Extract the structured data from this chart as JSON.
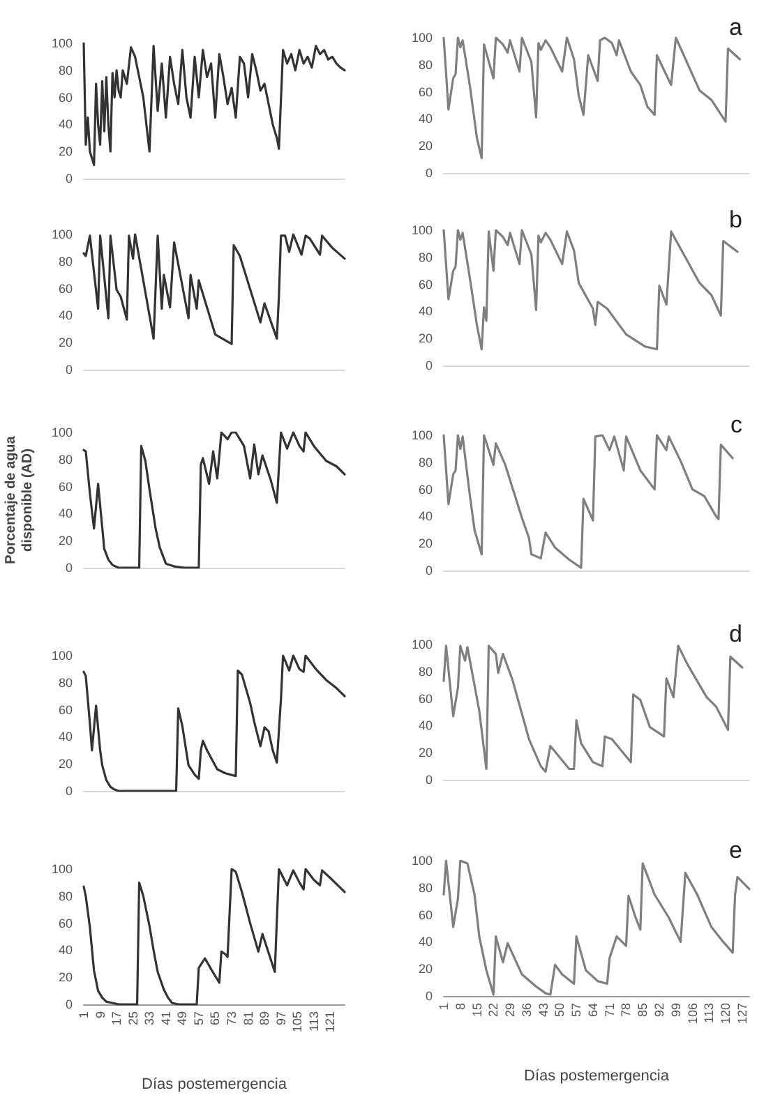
{
  "chart_data": [
    {
      "type": "line",
      "marker": "none",
      "xlim": [
        1,
        128
      ],
      "ylim": [
        0,
        100
      ],
      "yticks": [
        0,
        20,
        40,
        60,
        80,
        100
      ],
      "tick_labels": "y",
      "x": [
        1,
        2,
        3,
        4,
        5,
        6,
        7,
        8,
        9,
        10,
        11,
        12,
        13,
        14,
        15,
        16,
        17,
        18,
        19,
        20,
        22,
        24,
        26,
        28,
        30,
        33,
        35,
        37,
        39,
        41,
        43,
        45,
        47,
        49,
        51,
        53,
        55,
        57,
        59,
        61,
        63,
        65,
        67,
        69,
        71,
        73,
        75,
        77,
        79,
        81,
        83,
        85,
        87,
        89,
        91,
        93,
        95,
        96,
        98,
        100,
        102,
        104,
        106,
        108,
        110,
        112,
        114,
        116,
        118,
        120,
        122,
        124,
        126,
        128
      ],
      "series": [
        {
          "color": "#333333",
          "values": [
            100,
            25,
            45,
            20,
            15,
            10,
            70,
            40,
            25,
            72,
            35,
            75,
            40,
            20,
            78,
            60,
            80,
            65,
            60,
            80,
            70,
            97,
            90,
            75,
            60,
            20,
            98,
            50,
            85,
            45,
            90,
            70,
            55,
            95,
            60,
            45,
            90,
            60,
            95,
            75,
            85,
            45,
            92,
            75,
            55,
            67,
            45,
            90,
            85,
            60,
            92,
            80,
            65,
            70,
            55,
            40,
            30,
            22,
            95,
            85,
            92,
            80,
            95,
            85,
            90,
            82,
            98,
            92,
            95,
            88,
            90,
            85,
            82,
            80
          ]
        }
      ]
    },
    {
      "type": "line",
      "marker": "none",
      "xlim": [
        1,
        130
      ],
      "ylim": [
        0,
        100
      ],
      "yticks": [
        0,
        20,
        40,
        60,
        80,
        100
      ],
      "tick_labels": "y",
      "title": "a",
      "x": [
        1,
        3,
        5,
        6,
        7,
        8,
        9,
        12,
        15,
        17,
        18,
        22,
        23,
        26,
        28,
        29,
        33,
        34,
        38,
        40,
        41,
        42,
        44,
        46,
        51,
        53,
        56,
        58,
        60,
        62,
        66,
        67,
        69,
        72,
        74,
        75,
        80,
        84,
        87,
        90,
        91,
        97,
        99,
        109,
        114,
        120,
        121,
        126
      ],
      "series": [
        {
          "color": "#7f7f7f",
          "values": [
            100,
            47,
            70,
            73,
            100,
            93,
            98,
            65,
            26,
            11,
            95,
            70,
            100,
            95,
            89,
            98,
            75,
            100,
            82,
            41,
            96,
            91,
            98,
            93,
            75,
            100,
            84,
            57,
            43,
            87,
            68,
            98,
            100,
            96,
            87,
            98,
            75,
            65,
            49,
            43,
            87,
            65,
            100,
            61,
            54,
            38,
            92,
            84
          ]
        }
      ]
    },
    {
      "type": "line",
      "marker": "none",
      "xlim": [
        1,
        128
      ],
      "ylim": [
        0,
        100
      ],
      "yticks": [
        0,
        20,
        40,
        60,
        80,
        100
      ],
      "tick_labels": "y",
      "x": [
        1,
        2,
        4,
        8,
        9,
        13,
        14,
        17,
        19,
        22,
        23,
        25,
        26,
        35,
        37,
        39,
        40,
        43,
        45,
        52,
        53,
        56,
        57,
        65,
        73,
        74,
        77,
        87,
        89,
        95,
        96,
        97,
        99,
        101,
        103,
        107,
        109,
        111,
        116,
        117,
        122,
        128
      ],
      "series": [
        {
          "color": "#333333",
          "values": [
            86,
            84,
            99,
            45,
            99,
            38,
            99,
            59,
            54,
            37,
            99,
            82,
            100,
            23,
            99,
            45,
            70,
            46,
            94,
            38,
            70,
            45,
            66,
            26,
            19,
            92,
            84,
            35,
            49,
            23,
            54,
            99,
            99,
            87,
            100,
            85,
            99,
            97,
            85,
            99,
            90,
            82
          ]
        }
      ]
    },
    {
      "type": "line",
      "marker": "none",
      "xlim": [
        1,
        130
      ],
      "ylim": [
        0,
        100
      ],
      "yticks": [
        0,
        20,
        40,
        60,
        80,
        100
      ],
      "tick_labels": "y",
      "title": "b",
      "x": [
        1,
        3,
        5,
        6,
        7,
        8,
        9,
        12,
        15,
        17,
        18,
        19,
        20,
        22,
        23,
        26,
        28,
        29,
        33,
        34,
        38,
        40,
        41,
        42,
        44,
        46,
        51,
        53,
        56,
        58,
        64,
        65,
        66,
        70,
        78,
        86,
        91,
        92,
        95,
        97,
        109,
        114,
        118,
        119,
        125
      ],
      "series": [
        {
          "color": "#7f7f7f",
          "values": [
            100,
            49,
            70,
            73,
            100,
            93,
            98,
            65,
            30,
            12,
            43,
            33,
            99,
            70,
            100,
            95,
            89,
            98,
            75,
            100,
            82,
            41,
            96,
            91,
            98,
            93,
            75,
            99,
            85,
            61,
            42,
            30,
            47,
            42,
            23,
            14,
            12,
            59,
            45,
            99,
            61,
            52,
            37,
            92,
            84
          ]
        }
      ]
    },
    {
      "type": "line",
      "marker": "none",
      "xlim": [
        1,
        128
      ],
      "ylim": [
        0,
        100
      ],
      "yticks": [
        0,
        20,
        40,
        60,
        80,
        100
      ],
      "tick_labels": "y",
      "ylabel": "Porcentaje de agua disponible (AD)",
      "x": [
        1,
        2,
        4,
        6,
        8,
        10,
        11,
        13,
        15,
        18,
        28,
        29,
        31,
        33,
        36,
        38,
        41,
        45,
        50,
        57,
        58,
        59,
        62,
        64,
        66,
        68,
        71,
        73,
        75,
        79,
        82,
        84,
        86,
        88,
        92,
        95,
        97,
        100,
        103,
        106,
        108,
        109,
        113,
        119,
        124,
        128
      ],
      "series": [
        {
          "color": "#333333",
          "values": [
            87,
            86,
            55,
            29,
            62,
            30,
            14,
            6,
            2,
            0,
            0,
            90,
            79,
            58,
            29,
            15,
            3,
            1,
            0,
            0,
            76,
            81,
            62,
            86,
            66,
            100,
            95,
            100,
            100,
            90,
            66,
            91,
            69,
            83,
            65,
            48,
            100,
            88,
            100,
            90,
            86,
            100,
            90,
            79,
            75,
            69
          ]
        }
      ]
    },
    {
      "type": "line",
      "marker": "none",
      "xlim": [
        1,
        130
      ],
      "ylim": [
        0,
        100
      ],
      "yticks": [
        0,
        20,
        40,
        60,
        80,
        100
      ],
      "tick_labels": "y",
      "title": "c",
      "x": [
        1,
        3,
        5,
        6,
        7,
        8,
        9,
        12,
        14,
        17,
        18,
        22,
        23,
        27,
        34,
        37,
        38,
        42,
        44,
        48,
        54,
        59,
        60,
        64,
        65,
        68,
        71,
        73,
        77,
        78,
        84,
        90,
        91,
        95,
        96,
        101,
        106,
        111,
        116,
        117,
        118,
        123
      ],
      "series": [
        {
          "color": "#7f7f7f",
          "values": [
            100,
            49,
            71,
            74,
            100,
            90,
            99,
            56,
            30,
            12,
            100,
            78,
            94,
            78,
            39,
            24,
            12,
            9,
            28,
            17,
            8,
            2,
            53,
            37,
            99,
            100,
            89,
            99,
            74,
            99,
            74,
            60,
            100,
            89,
            99,
            81,
            60,
            55,
            40,
            38,
            93,
            83
          ]
        }
      ]
    },
    {
      "type": "line",
      "marker": "none",
      "xlim": [
        1,
        128
      ],
      "ylim": [
        0,
        100
      ],
      "yticks": [
        0,
        20,
        40,
        60,
        80,
        100
      ],
      "tick_labels": "y",
      "x": [
        1,
        2,
        4,
        5,
        7,
        9,
        10,
        12,
        14,
        16,
        18,
        46,
        47,
        49,
        52,
        55,
        57,
        58,
        59,
        61,
        66,
        70,
        75,
        76,
        78,
        82,
        84,
        87,
        89,
        91,
        93,
        95,
        97,
        98,
        101,
        103,
        106,
        108,
        109,
        114,
        119,
        124,
        128
      ],
      "series": [
        {
          "color": "#333333",
          "values": [
            88,
            85,
            50,
            30,
            63,
            30,
            19,
            8,
            3,
            1,
            0,
            0,
            61,
            48,
            19,
            12,
            9,
            30,
            37,
            30,
            16,
            13,
            11,
            89,
            86,
            65,
            51,
            33,
            47,
            44,
            30,
            21,
            68,
            100,
            89,
            100,
            90,
            88,
            100,
            90,
            82,
            76,
            70
          ]
        }
      ]
    },
    {
      "type": "line",
      "marker": "none",
      "xlim": [
        1,
        130
      ],
      "ylim": [
        0,
        100
      ],
      "yticks": [
        0,
        20,
        40,
        60,
        80,
        100
      ],
      "tick_labels": "y",
      "title": "d",
      "x": [
        1,
        2,
        5,
        7,
        8,
        10,
        11,
        16,
        19,
        20,
        23,
        24,
        26,
        30,
        37,
        42,
        44,
        46,
        54,
        56,
        57,
        59,
        64,
        68,
        69,
        72,
        80,
        81,
        84,
        88,
        94,
        95,
        98,
        100,
        104,
        112,
        116,
        121,
        122,
        127
      ],
      "series": [
        {
          "color": "#7f7f7f",
          "values": [
            73,
            99,
            47,
            68,
            99,
            88,
            98,
            51,
            8,
            99,
            93,
            79,
            93,
            74,
            30,
            10,
            6,
            25,
            8,
            8,
            44,
            27,
            13,
            10,
            32,
            30,
            13,
            63,
            59,
            39,
            32,
            75,
            61,
            99,
            85,
            61,
            54,
            37,
            91,
            83
          ]
        }
      ]
    },
    {
      "type": "line",
      "marker": "none",
      "xlim": [
        1,
        128
      ],
      "ylim": [
        0,
        100
      ],
      "yticks": [
        0,
        20,
        40,
        60,
        80,
        100
      ],
      "xticks": [
        1,
        9,
        17,
        25,
        33,
        41,
        49,
        57,
        65,
        73,
        81,
        89,
        97,
        105,
        113,
        121
      ],
      "xlabel": "Días postemergencia",
      "x": [
        1,
        2,
        4,
        6,
        8,
        10,
        12,
        15,
        18,
        27,
        28,
        30,
        33,
        35,
        37,
        40,
        42,
        44,
        47,
        56,
        57,
        60,
        63,
        67,
        68,
        70,
        71,
        73,
        75,
        78,
        82,
        86,
        88,
        91,
        94,
        96,
        100,
        103,
        106,
        108,
        109,
        113,
        116,
        117,
        122,
        128
      ],
      "series": [
        {
          "color": "#333333",
          "values": [
            87,
            80,
            57,
            25,
            10,
            5,
            2,
            1,
            0,
            0,
            90,
            80,
            58,
            40,
            24,
            11,
            5,
            1,
            0,
            0,
            27,
            34,
            26,
            16,
            39,
            37,
            35,
            100,
            98,
            83,
            60,
            39,
            52,
            38,
            24,
            100,
            88,
            99,
            90,
            85,
            100,
            92,
            88,
            99,
            92,
            83
          ]
        }
      ]
    },
    {
      "type": "line",
      "marker": "none",
      "xlim": [
        1,
        130
      ],
      "ylim": [
        0,
        100
      ],
      "yticks": [
        0,
        20,
        40,
        60,
        80,
        100
      ],
      "xticks": [
        1,
        8,
        15,
        22,
        29,
        36,
        43,
        50,
        57,
        64,
        71,
        78,
        85,
        92,
        99,
        106,
        113,
        120,
        127
      ],
      "title": "e",
      "xlabel": "Días postemergencia",
      "x": [
        1,
        2,
        5,
        7,
        8,
        11,
        14,
        16,
        19,
        22,
        23,
        26,
        28,
        34,
        40,
        44,
        46,
        48,
        51,
        56,
        57,
        61,
        66,
        70,
        71,
        74,
        78,
        79,
        82,
        84,
        85,
        90,
        96,
        101,
        103,
        108,
        114,
        119,
        123,
        124,
        125,
        130
      ],
      "series": [
        {
          "color": "#7f7f7f",
          "values": [
            75,
            100,
            51,
            72,
            100,
            98,
            75,
            44,
            19,
            1,
            44,
            25,
            39,
            16,
            7,
            2,
            1,
            23,
            16,
            9,
            44,
            19,
            11,
            9,
            28,
            44,
            37,
            74,
            58,
            49,
            98,
            75,
            58,
            40,
            91,
            75,
            51,
            40,
            32,
            75,
            88,
            79
          ]
        }
      ]
    }
  ]
}
